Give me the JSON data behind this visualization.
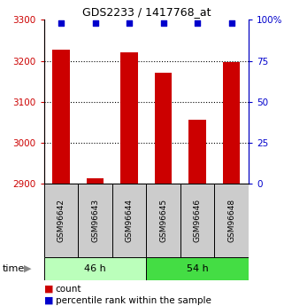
{
  "title": "GDS2233 / 1417768_at",
  "samples": [
    "GSM96642",
    "GSM96643",
    "GSM96644",
    "GSM96645",
    "GSM96646",
    "GSM96648"
  ],
  "counts": [
    3228,
    2912,
    3220,
    3170,
    3055,
    3197
  ],
  "percentiles": [
    98,
    98,
    98,
    98,
    98,
    98
  ],
  "ylim_left": [
    2900,
    3300
  ],
  "ylim_right": [
    0,
    100
  ],
  "yticks_left": [
    2900,
    3000,
    3100,
    3200,
    3300
  ],
  "yticks_right": [
    0,
    25,
    50,
    75,
    100
  ],
  "yticklabels_right": [
    "0",
    "25",
    "50",
    "75",
    "100%"
  ],
  "bar_color": "#cc0000",
  "dot_color": "#0000cc",
  "group1_label": "46 h",
  "group2_label": "54 h",
  "group1_indices": [
    0,
    1,
    2
  ],
  "group2_indices": [
    3,
    4,
    5
  ],
  "light_green": "#bbffbb",
  "medium_green": "#44dd44",
  "gray_bg": "#cccccc",
  "legend_count_color": "#cc0000",
  "legend_pct_color": "#0000cc",
  "left_axis_color": "#cc0000",
  "right_axis_color": "#0000cc",
  "gridline_ticks": [
    3000,
    3100,
    3200
  ]
}
